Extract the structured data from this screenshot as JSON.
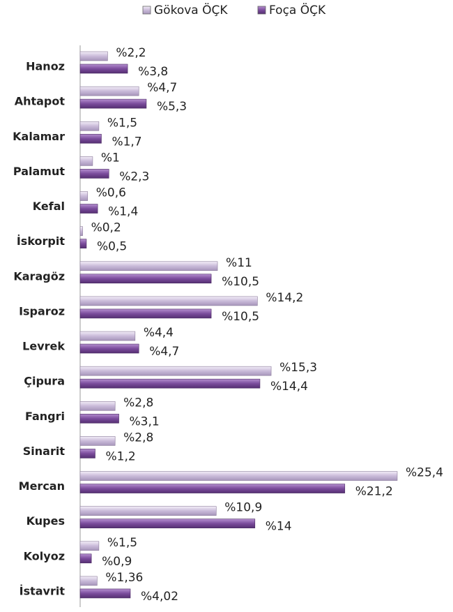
{
  "chart_data": {
    "type": "bar",
    "orientation": "horizontal",
    "categories": [
      "Hanoz",
      "Ahtapot",
      "Kalamar",
      "Palamut",
      "Kefal",
      "İskorpit",
      "Karagöz",
      "Isparoz",
      "Levrek",
      "Çipura",
      "Fangri",
      "Sinarit",
      "Mercan",
      "Kupes",
      "Kolyoz",
      "İstavrit"
    ],
    "series": [
      {
        "name": "Gökova ÖÇK",
        "color": "#c9bad9",
        "values": [
          2.2,
          4.7,
          1.5,
          1,
          0.6,
          0.2,
          11,
          14.2,
          4.4,
          15.3,
          2.8,
          2.8,
          25.4,
          10.9,
          1.5,
          1.36
        ],
        "value_labels": [
          "%2,2",
          "%4,7",
          "%1,5",
          "%1",
          "%0,6",
          "%0,2",
          "%11",
          "%14,2",
          "%4,4",
          "%15,3",
          "%2,8",
          "%2,8",
          "%25,4",
          "%10,9",
          "%1,5",
          "%1,36"
        ]
      },
      {
        "name": "Foça ÖÇK",
        "color": "#7b4c9c",
        "values": [
          3.8,
          5.3,
          1.7,
          2.3,
          1.4,
          0.5,
          10.5,
          10.5,
          4.7,
          14.4,
          3.1,
          1.2,
          21.2,
          14,
          0.9,
          4.02
        ],
        "value_labels": [
          "%3,8",
          "%5,3",
          "%1,7",
          "%2,3",
          "%1,4",
          "%0,5",
          "%10,5",
          "%10,5",
          "%4,7",
          "%14,4",
          "%3,1",
          "%1,2",
          "%21,2",
          "%14",
          "%0,9",
          "%4,02"
        ]
      }
    ],
    "legend": "top"
  }
}
